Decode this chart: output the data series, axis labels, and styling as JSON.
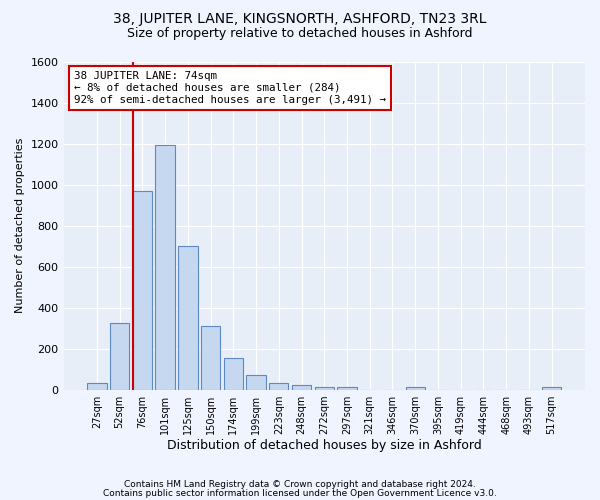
{
  "title1": "38, JUPITER LANE, KINGSNORTH, ASHFORD, TN23 3RL",
  "title2": "Size of property relative to detached houses in Ashford",
  "xlabel": "Distribution of detached houses by size in Ashford",
  "ylabel": "Number of detached properties",
  "footer1": "Contains HM Land Registry data © Crown copyright and database right 2024.",
  "footer2": "Contains public sector information licensed under the Open Government Licence v3.0.",
  "bar_labels": [
    "27sqm",
    "52sqm",
    "76sqm",
    "101sqm",
    "125sqm",
    "150sqm",
    "174sqm",
    "199sqm",
    "223sqm",
    "248sqm",
    "272sqm",
    "297sqm",
    "321sqm",
    "346sqm",
    "370sqm",
    "395sqm",
    "419sqm",
    "444sqm",
    "468sqm",
    "493sqm",
    "517sqm"
  ],
  "bar_values": [
    30,
    325,
    970,
    1195,
    700,
    310,
    155,
    70,
    30,
    20,
    15,
    15,
    0,
    0,
    12,
    0,
    0,
    0,
    0,
    0,
    12
  ],
  "bar_color": "#c5d8f0",
  "bar_edge_color": "#5b8ac5",
  "highlight_bar_index": 2,
  "highlight_line_color": "#cc0000",
  "annotation_line1": "38 JUPITER LANE: 74sqm",
  "annotation_line2": "← 8% of detached houses are smaller (284)",
  "annotation_line3": "92% of semi-detached houses are larger (3,491) →",
  "annotation_box_color": "#ffffff",
  "annotation_box_edge_color": "#cc0000",
  "ylim": [
    0,
    1600
  ],
  "yticks": [
    0,
    200,
    400,
    600,
    800,
    1000,
    1200,
    1400,
    1600
  ],
  "background_color": "#f0f4ff",
  "plot_background": "#e8eef8",
  "grid_color": "#ffffff"
}
